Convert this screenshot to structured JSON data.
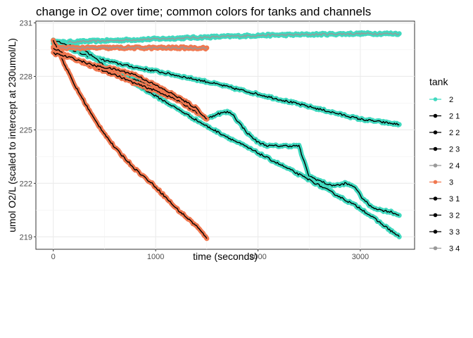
{
  "chart_data": {
    "type": "line",
    "title": "change in O2 over time;  common colors for tanks and channels",
    "xlabel": "time (seconds)",
    "ylabel": "umol O2/L (scaled to intercept at 230umol/L)",
    "xlim": [
      -170,
      3530
    ],
    "ylim": [
      218.3,
      231.1
    ],
    "x_ticks": [
      0,
      1000,
      2000,
      3000
    ],
    "y_ticks": [
      219,
      222,
      225,
      228,
      231
    ],
    "grid": true,
    "legend": {
      "title": "tank",
      "position": "right",
      "entries": [
        {
          "label": "2",
          "color": "#40D9BF"
        },
        {
          "label": "2 1",
          "color": "#000000"
        },
        {
          "label": "2 2",
          "color": "#000000"
        },
        {
          "label": "2 3",
          "color": "#000000"
        },
        {
          "label": "2 4",
          "color": "#999999"
        },
        {
          "label": "3",
          "color": "#F07850"
        },
        {
          "label": "3 1",
          "color": "#000000"
        },
        {
          "label": "3 2",
          "color": "#000000"
        },
        {
          "label": "3 3",
          "color": "#000000"
        },
        {
          "label": "3 4",
          "color": "#999999"
        }
      ]
    },
    "series": [
      {
        "tank": "2",
        "channel": "2 4",
        "color": "#40D9BF",
        "line_color": "#999999",
        "x": [
          0,
          500,
          1000,
          1500,
          2000,
          2500,
          3000,
          3380
        ],
        "y": [
          229.9,
          230.0,
          230.1,
          230.2,
          230.3,
          230.35,
          230.4,
          230.4
        ]
      },
      {
        "tank": "2",
        "channel": "2 1",
        "color": "#40D9BF",
        "line_color": "#000000",
        "x": [
          0,
          300,
          500,
          800,
          1000,
          1500,
          2000,
          2500,
          3000,
          3380
        ],
        "y": [
          230.0,
          229.2,
          228.9,
          228.5,
          228.3,
          227.7,
          227.0,
          226.3,
          225.6,
          225.3
        ]
      },
      {
        "tank": "2",
        "channel": "2 2",
        "color": "#40D9BF",
        "line_color": "#000000",
        "x": [
          0,
          200,
          350,
          500,
          700,
          900,
          1100,
          1300,
          1400,
          1500,
          1600,
          1700,
          1750,
          1800,
          1900,
          2000,
          2100,
          2200,
          2300,
          2400,
          2450,
          2500,
          2700,
          2800,
          2850,
          2950,
          3000,
          3100,
          3200,
          3300,
          3380
        ],
        "y": [
          230.0,
          229.6,
          229.3,
          228.6,
          228.0,
          227.6,
          227.1,
          226.5,
          226.0,
          225.6,
          225.9,
          226.0,
          225.9,
          225.5,
          224.8,
          224.3,
          224.1,
          224.1,
          224.1,
          224.1,
          223.2,
          222.4,
          221.9,
          221.9,
          222.0,
          221.8,
          221.3,
          220.7,
          220.5,
          220.4,
          220.2
        ]
      },
      {
        "tank": "2",
        "channel": "2 3",
        "color": "#40D9BF",
        "line_color": "#000000",
        "x": [
          0,
          300,
          500,
          1000,
          1500,
          2000,
          2500,
          3000,
          3380
        ],
        "y": [
          230.0,
          229.5,
          228.6,
          226.9,
          225.2,
          223.7,
          222.2,
          220.6,
          219.0
        ]
      },
      {
        "tank": "3",
        "channel": "3 4",
        "color": "#F07850",
        "line_color": "#999999",
        "x": [
          0,
          300,
          600,
          900,
          1200,
          1500
        ],
        "y": [
          229.6,
          229.6,
          229.6,
          229.6,
          229.6,
          229.6
        ]
      },
      {
        "tank": "3",
        "channel": "3 1",
        "color": "#F07850",
        "line_color": "#000000",
        "x": [
          0,
          200,
          400,
          600,
          800,
          1000,
          1200,
          1400,
          1500
        ],
        "y": [
          230.0,
          227.6,
          225.6,
          224.0,
          222.8,
          221.8,
          220.6,
          219.6,
          218.9
        ]
      },
      {
        "tank": "3",
        "channel": "3 2",
        "color": "#F07850",
        "line_color": "#000000",
        "x": [
          0,
          200,
          400,
          600,
          800,
          1000,
          1200,
          1400,
          1500
        ],
        "y": [
          229.6,
          229.0,
          228.5,
          228.1,
          227.6,
          227.2,
          226.7,
          226.0,
          225.6
        ]
      },
      {
        "tank": "3",
        "channel": "3 3",
        "color": "#F07850",
        "line_color": "#000000",
        "x": [
          0,
          200,
          400,
          600,
          800,
          1000,
          1200,
          1400,
          1500
        ],
        "y": [
          229.3,
          229.0,
          228.6,
          228.4,
          228.1,
          227.5,
          226.9,
          226.2,
          225.6
        ]
      }
    ]
  }
}
